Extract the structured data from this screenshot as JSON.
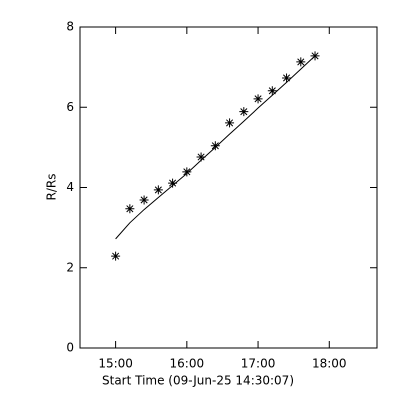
{
  "chart_data": {
    "type": "scatter",
    "x_label": "Start Time (09-Jun-25 14:30:07)",
    "y_label": "R/Rs",
    "xlim": [
      14.5,
      18.67
    ],
    "ylim": [
      0,
      8
    ],
    "xticks": [
      {
        "value": 15,
        "label": "15:00"
      },
      {
        "value": 16,
        "label": "16:00"
      },
      {
        "value": 17,
        "label": "17:00"
      },
      {
        "value": 18,
        "label": "18:00"
      }
    ],
    "yticks": [
      0,
      2,
      4,
      6,
      8
    ],
    "series": [
      {
        "type": "scatter",
        "marker": "asterisk",
        "color": "#000000",
        "x": [
          15.0,
          15.2,
          15.4,
          15.6,
          15.8,
          16.0,
          16.2,
          16.4,
          16.6,
          16.8,
          17.0,
          17.2,
          17.4,
          17.6,
          17.8
        ],
        "values": [
          2.29,
          3.47,
          3.69,
          3.94,
          4.11,
          4.39,
          4.76,
          5.04,
          5.61,
          5.89,
          6.21,
          6.41,
          6.73,
          7.13,
          7.28
        ]
      },
      {
        "type": "line",
        "color": "#000000",
        "x": [
          15.0,
          15.2,
          15.4,
          15.6,
          15.8,
          16.0,
          16.2,
          16.4,
          16.6,
          16.8,
          17.0,
          17.2,
          17.4,
          17.6,
          17.8
        ],
        "values": [
          2.72,
          3.12,
          3.45,
          3.75,
          4.05,
          4.35,
          4.68,
          5.0,
          5.33,
          5.65,
          5.98,
          6.3,
          6.62,
          6.95,
          7.28
        ]
      }
    ]
  }
}
